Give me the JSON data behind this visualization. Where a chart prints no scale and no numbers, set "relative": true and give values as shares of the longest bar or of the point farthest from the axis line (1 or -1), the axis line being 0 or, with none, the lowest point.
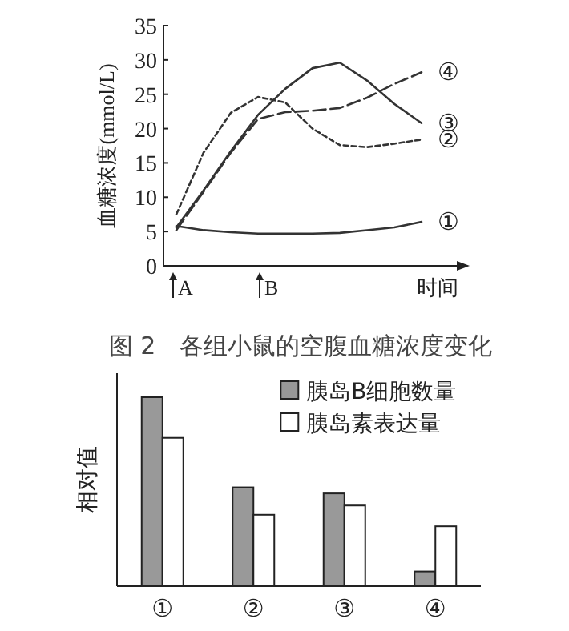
{
  "chart_data": [
    {
      "type": "line",
      "title": "图 2　各组小鼠的空腹血糖浓度变化",
      "ylabel": "血糖浓度(mmol/L)",
      "xlabel": "时间",
      "categories": [
        null,
        null,
        null,
        null,
        null,
        null,
        null,
        null,
        null,
        null
      ],
      "annotations": [
        "A",
        "B"
      ],
      "ylim": [
        0,
        35
      ],
      "yticks": [
        0,
        5,
        10,
        15,
        20,
        25,
        30,
        35
      ],
      "legend": false,
      "series": [
        {
          "name": "①",
          "color": "#333333",
          "line_style": "solid",
          "values": [
            5.8,
            5.2,
            4.9,
            4.7,
            4.7,
            4.7,
            4.8,
            5.2,
            5.6,
            6.4
          ]
        },
        {
          "name": "②",
          "color": "#333333",
          "line_style": "dotted",
          "values": [
            7.5,
            16.5,
            22.3,
            24.6,
            23.8,
            20,
            17.6,
            17.3,
            17.8,
            18.4
          ]
        },
        {
          "name": "③",
          "color": "#333333",
          "line_style": "solid",
          "values": [
            5.6,
            11,
            16.7,
            22,
            25.8,
            28.8,
            29.6,
            27,
            23.6,
            20.8
          ]
        },
        {
          "name": "④",
          "color": "#333333",
          "line_style": "dashed",
          "values": [
            5.2,
            10.8,
            16.5,
            21.4,
            22.4,
            22.6,
            23,
            24.5,
            26.5,
            28.2
          ]
        }
      ]
    },
    {
      "type": "bar",
      "relative": true,
      "ylabel": "相对值",
      "categories": [
        "①",
        "②",
        "③",
        "④"
      ],
      "legend": "top right",
      "series": [
        {
          "name": "胰岛B细胞数量",
          "color": "#999999",
          "values": [
            1,
            0.523,
            0.491,
            0.078
          ]
        },
        {
          "name": "胰岛素表达量",
          "color": "#ffffff",
          "values": [
            0.785,
            0.378,
            0.427,
            0.317
          ]
        }
      ]
    }
  ]
}
